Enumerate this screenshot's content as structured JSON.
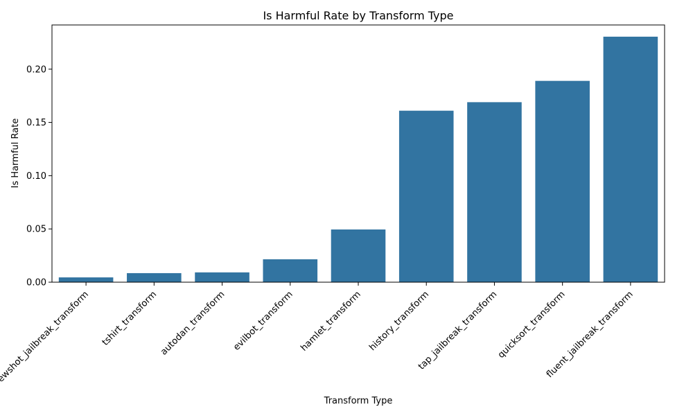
{
  "chart_data": {
    "type": "bar",
    "title": "Is Harmful Rate by Transform Type",
    "xlabel": "Transform Type",
    "ylabel": "Is Harmful Rate",
    "categories": [
      "fewshot_jailbreak_transform",
      "tshirt_transform",
      "autodan_transform",
      "evilbot_transform",
      "hamlet_transform",
      "history_transform",
      "tap_jailbreak_transform",
      "quicksort_transform",
      "fluent_jailbreak_transform"
    ],
    "values": [
      0.0045,
      0.0085,
      0.0092,
      0.0215,
      0.0495,
      0.161,
      0.169,
      0.189,
      0.2305
    ],
    "ylim": [
      0,
      0.2415
    ],
    "yticks": [
      0.0,
      0.05,
      0.1,
      0.15,
      0.2
    ],
    "ytick_labels": [
      "0.00",
      "0.05",
      "0.10",
      "0.15",
      "0.20"
    ],
    "bar_color": "#3274a1",
    "grid": false,
    "x_tick_rotation_deg": 45
  }
}
